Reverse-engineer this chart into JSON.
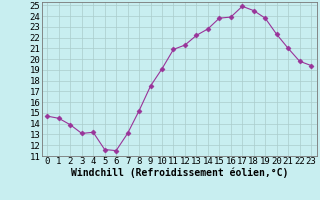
{
  "x": [
    0,
    1,
    2,
    3,
    4,
    5,
    6,
    7,
    8,
    9,
    10,
    11,
    12,
    13,
    14,
    15,
    16,
    17,
    18,
    19,
    20,
    21,
    22,
    23
  ],
  "y": [
    14.7,
    14.5,
    13.9,
    13.1,
    13.2,
    11.6,
    11.5,
    13.1,
    15.2,
    17.5,
    19.1,
    20.9,
    21.3,
    22.2,
    22.8,
    23.8,
    23.9,
    24.9,
    24.5,
    23.8,
    22.3,
    21.0,
    19.8,
    19.4
  ],
  "line_color": "#993399",
  "marker": "D",
  "marker_size": 2.5,
  "bg_color": "#c8eef0",
  "grid_color": "#aacccc",
  "xlabel": "Windchill (Refroidissement éolien,°C)",
  "ylim": [
    11,
    25
  ],
  "xlim": [
    -0.5,
    23.5
  ],
  "yticks": [
    11,
    12,
    13,
    14,
    15,
    16,
    17,
    18,
    19,
    20,
    21,
    22,
    23,
    24,
    25
  ],
  "xticks": [
    0,
    1,
    2,
    3,
    4,
    5,
    6,
    7,
    8,
    9,
    10,
    11,
    12,
    13,
    14,
    15,
    16,
    17,
    18,
    19,
    20,
    21,
    22,
    23
  ],
  "xlabel_fontsize": 7,
  "tick_fontsize": 6.5
}
